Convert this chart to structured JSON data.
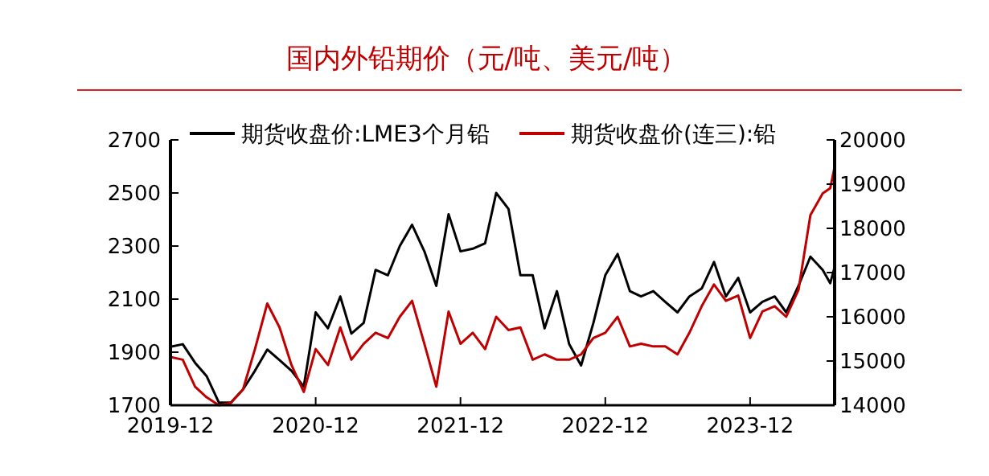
{
  "chart_data": {
    "type": "line",
    "title": "国内外铅期价（元/吨、美元/吨）",
    "x": [
      "2019-12",
      "2020-01",
      "2020-02",
      "2020-03",
      "2020-04",
      "2020-05",
      "2020-06",
      "2020-07",
      "2020-08",
      "2020-09",
      "2020-10",
      "2020-11",
      "2020-12",
      "2021-01",
      "2021-02",
      "2021-03",
      "2021-04",
      "2021-05",
      "2021-06",
      "2021-07",
      "2021-08",
      "2021-09",
      "2021-10",
      "2021-11",
      "2021-12",
      "2022-01",
      "2022-02",
      "2022-03",
      "2022-04",
      "2022-05",
      "2022-06",
      "2022-07",
      "2022-08",
      "2022-09",
      "2022-10",
      "2022-11",
      "2022-12",
      "2023-01",
      "2023-02",
      "2023-03",
      "2023-04",
      "2023-05",
      "2023-06",
      "2023-07",
      "2023-08",
      "2023-09",
      "2023-10",
      "2023-11",
      "2023-12",
      "2024-01",
      "2024-02",
      "2024-03",
      "2024-04",
      "2024-05",
      "2024-06",
      "2024-06-20",
      "2024-07"
    ],
    "series": [
      {
        "name": "期货收盘价:LME3个月铅",
        "color": "#000000",
        "axis": "y",
        "values": [
          1920,
          1930,
          1860,
          1810,
          1710,
          1710,
          1760,
          1830,
          1910,
          1870,
          1830,
          1770,
          2050,
          1990,
          2110,
          1970,
          2010,
          2210,
          2190,
          2300,
          2380,
          2280,
          2150,
          2420,
          2280,
          2290,
          2310,
          2500,
          2440,
          2190,
          2190,
          1990,
          2130,
          1930,
          1850,
          2010,
          2190,
          2270,
          2130,
          2110,
          2130,
          2090,
          2050,
          2110,
          2140,
          2240,
          2110,
          2180,
          2050,
          2090,
          2110,
          2050,
          2150,
          2260,
          2210,
          2160,
          2220
        ]
      },
      {
        "name": "期货收盘价(连三):铅",
        "color": "#c00000",
        "axis": "y2",
        "values": [
          15090,
          15030,
          14420,
          14180,
          14000,
          14050,
          14360,
          15270,
          16300,
          15760,
          14910,
          14300,
          15270,
          14910,
          15760,
          15030,
          15390,
          15640,
          15520,
          16000,
          16360,
          15390,
          14420,
          16120,
          15390,
          15640,
          15270,
          16000,
          15700,
          15760,
          15030,
          15150,
          15030,
          15030,
          15150,
          15520,
          15640,
          16000,
          15330,
          15390,
          15330,
          15330,
          15150,
          15640,
          16240,
          16730,
          16360,
          16480,
          15520,
          16120,
          16240,
          16000,
          16610,
          18300,
          18790,
          18910,
          19390
        ]
      }
    ],
    "xlim": [
      "2019-12",
      "2024-07"
    ],
    "xticks": [
      {
        "value": "2019-12",
        "label": "2019-12"
      },
      {
        "value": "2020-12",
        "label": "2020-12"
      },
      {
        "value": "2021-12",
        "label": "2021-12"
      },
      {
        "value": "2022-12",
        "label": "2022-12"
      },
      {
        "value": "2023-12",
        "label": "2023-12"
      }
    ],
    "ylim": [
      1700,
      2700
    ],
    "yticks": [
      1700,
      1900,
      2100,
      2300,
      2500,
      2700
    ],
    "y2lim": [
      14000,
      20000
    ],
    "y2ticks": [
      14000,
      15000,
      16000,
      17000,
      18000,
      19000,
      20000
    ],
    "legend": "top",
    "grid": false
  }
}
